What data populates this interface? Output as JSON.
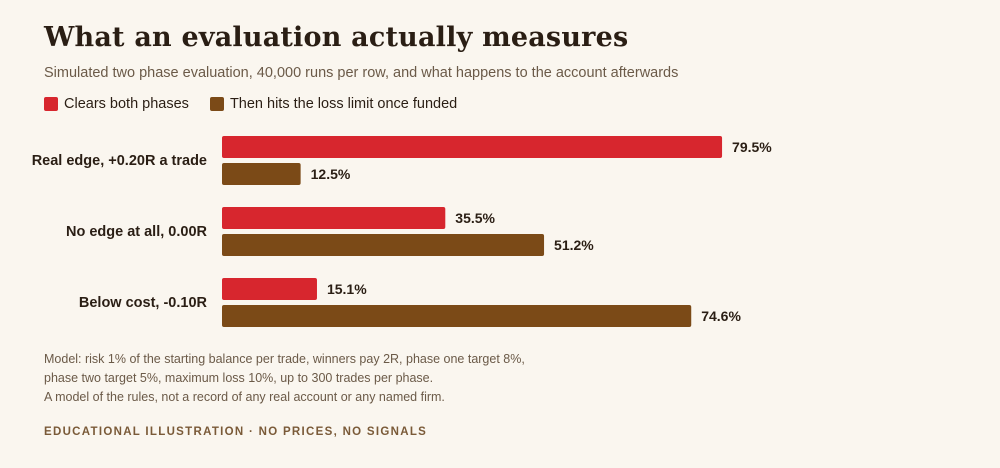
{
  "title": "What an evaluation actually measures",
  "subtitle": "Simulated two phase evaluation, 40,000 runs per row, and what happens to the account afterwards",
  "colors": {
    "series1": "#d7262e",
    "series2": "#7b4a17",
    "background": "#faf6ef"
  },
  "notes": [
    "Model: risk 1% of the starting balance per trade, winners pay 2R, phase one target 8%,",
    "phase two target 5%, maximum loss 10%, up to 300 trades per phase.",
    "A model of the rules, not a record of any real account or any named firm."
  ],
  "footer": "EDUCATIONAL ILLUSTRATION · NO PRICES, NO SIGNALS",
  "chart_data": {
    "type": "bar",
    "orientation": "horizontal",
    "categories": [
      "Real edge, +0.20R a trade",
      "No edge at all, 0.00R",
      "Below cost, -0.10R"
    ],
    "series": [
      {
        "name": "Clears both phases",
        "values": [
          79.5,
          35.5,
          15.1
        ],
        "labels": [
          "79.5%",
          "35.5%",
          "15.1%"
        ]
      },
      {
        "name": "Then hits the loss limit once funded",
        "values": [
          12.5,
          51.2,
          74.6
        ],
        "labels": [
          "12.5%",
          "51.2%",
          "74.6%"
        ]
      }
    ],
    "xlim": [
      0,
      100
    ],
    "grid": false,
    "legend": "top-left"
  }
}
